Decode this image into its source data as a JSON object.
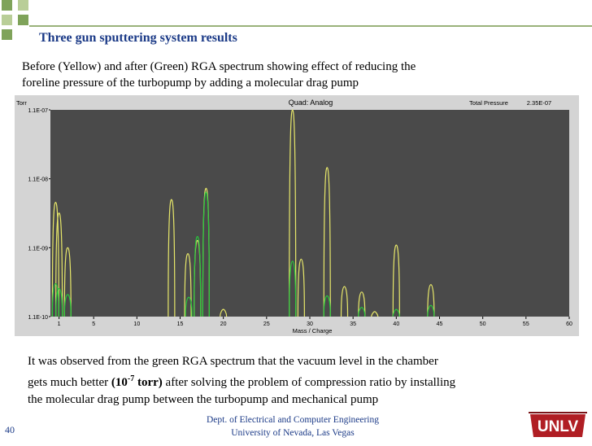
{
  "slide": {
    "title": "Three gun sputtering system results",
    "caption_line1": "Before (Yellow) and after (Green) RGA spectrum showing effect of reducing the",
    "caption_line2": "foreline pressure of the turbopump by adding a molecular drag pump",
    "body_line1": "It was observed from the green RGA spectrum that the vacuum level in the chamber",
    "body_line2_a": "gets much better ",
    "body_bold_base": "(10",
    "body_bold_exp": "-7",
    "body_bold_unit": " torr)",
    "body_line2_b": " after solving the problem of compression ratio by installing",
    "body_line3": "the molecular drag pump between the turbopump and mechanical pump",
    "footer_line1": "Dept. of Electrical and Computer Engineering",
    "footer_line2": "University of Nevada, Las Vegas",
    "slide_number": "40",
    "logo_text": "UNLV",
    "accent_color": "#1b3a87",
    "square_colors": [
      "#7fa35a",
      "#b9ce98"
    ]
  },
  "chart_data": {
    "type": "line",
    "title": "Quad: Analog",
    "total_pressure_label": "Total Pressure",
    "total_pressure_value": "2.35E-07",
    "ylabel": "Torr",
    "xlabel": "Mass / Charge",
    "y_scale": "log",
    "ylim": [
      1.1e-10,
      1.1e-07
    ],
    "xlim": [
      0,
      60
    ],
    "y_ticks": [
      {
        "label": "1.1E-07",
        "value": 1.1e-07
      },
      {
        "label": "1.1E-08",
        "value": 1.1e-08
      },
      {
        "label": "1.1E-09",
        "value": 1.1e-09
      },
      {
        "label": "1.1E-10",
        "value": 1.1e-10
      }
    ],
    "x_ticks": [
      1,
      5,
      10,
      15,
      20,
      25,
      30,
      35,
      40,
      45,
      50,
      55,
      60
    ],
    "background_color": "#4a4a4a",
    "series": [
      {
        "color": "#e8e86a",
        "peaks": [
          {
            "x": 0.6,
            "y": 5e-09
          },
          {
            "x": 1.0,
            "y": 3.5e-09
          },
          {
            "x": 2.0,
            "y": 1.1e-09
          },
          {
            "x": 14.0,
            "y": 5.5e-09
          },
          {
            "x": 15.9,
            "y": 9e-10
          },
          {
            "x": 17.0,
            "y": 1.4e-09
          },
          {
            "x": 18.0,
            "y": 8e-09
          },
          {
            "x": 20.0,
            "y": 1.4e-10
          },
          {
            "x": 28.0,
            "y": 1.1e-07
          },
          {
            "x": 29.0,
            "y": 7.5e-10
          },
          {
            "x": 32.0,
            "y": 1.6e-08
          },
          {
            "x": 34.0,
            "y": 3e-10
          },
          {
            "x": 36.0,
            "y": 2.5e-10
          },
          {
            "x": 37.5,
            "y": 1.3e-10
          },
          {
            "x": 40.0,
            "y": 1.2e-09
          },
          {
            "x": 44.0,
            "y": 3.2e-10
          }
        ]
      },
      {
        "color": "#28c83c",
        "peaks": [
          {
            "x": 0.6,
            "y": 3.3e-10
          },
          {
            "x": 1.0,
            "y": 2.8e-10
          },
          {
            "x": 2.0,
            "y": 2.3e-10
          },
          {
            "x": 16.0,
            "y": 2.1e-10
          },
          {
            "x": 17.0,
            "y": 1.6e-09
          },
          {
            "x": 18.0,
            "y": 7e-09
          },
          {
            "x": 28.0,
            "y": 7e-10
          },
          {
            "x": 32.0,
            "y": 2.2e-10
          },
          {
            "x": 36.0,
            "y": 1.5e-10
          },
          {
            "x": 40.0,
            "y": 1.4e-10
          },
          {
            "x": 44.0,
            "y": 1.6e-10
          }
        ]
      }
    ]
  }
}
